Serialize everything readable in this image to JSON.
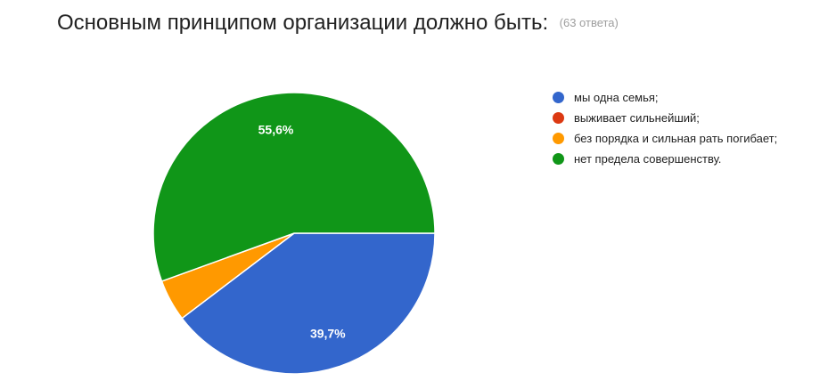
{
  "header": {
    "title": "Основным принципом организации должно быть:",
    "count": "(63 ответа)"
  },
  "chart_data": {
    "type": "pie",
    "slices": [
      {
        "label": "мы одна семья;",
        "value": 39.7,
        "color": "#3366cc",
        "data_label": "39,7%"
      },
      {
        "label": "выживает сильнейший;",
        "value": 0,
        "color": "#dc3912",
        "data_label": ""
      },
      {
        "label": "без порядка и сильная рать погибает;",
        "value": 4.8,
        "color": "#ff9900",
        "data_label": ""
      },
      {
        "label": "нет предела совершенству.",
        "value": 55.6,
        "color": "#109618",
        "data_label": "55,6%"
      }
    ],
    "legend_position": "right"
  }
}
